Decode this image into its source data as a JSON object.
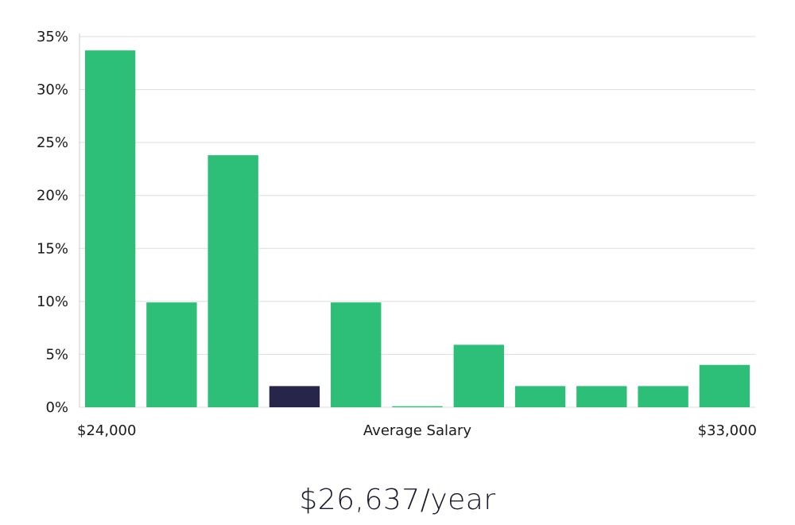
{
  "chart_data": {
    "type": "bar",
    "title": "",
    "xlabel": "Average Salary",
    "ylabel": "",
    "x_range_labels": {
      "min": "$24,000",
      "max": "$33,000"
    },
    "y_ticks": [
      0,
      5,
      10,
      15,
      20,
      25,
      30,
      35
    ],
    "y_tick_labels": [
      "0%",
      "5%",
      "10%",
      "15%",
      "20%",
      "25%",
      "30%",
      "35%"
    ],
    "ylim": [
      0,
      35
    ],
    "values": [
      33.7,
      9.9,
      23.8,
      2.0,
      9.9,
      0.1,
      5.9,
      2.0,
      2.0,
      2.0,
      4.0
    ],
    "highlight_index": 3,
    "grid": true,
    "colors": {
      "bar": "#2dbe78",
      "highlight": "#27254a",
      "grid": "#dddddd",
      "axis": "#cccccc"
    }
  },
  "summary": {
    "salary_text": "$26,637/year"
  }
}
